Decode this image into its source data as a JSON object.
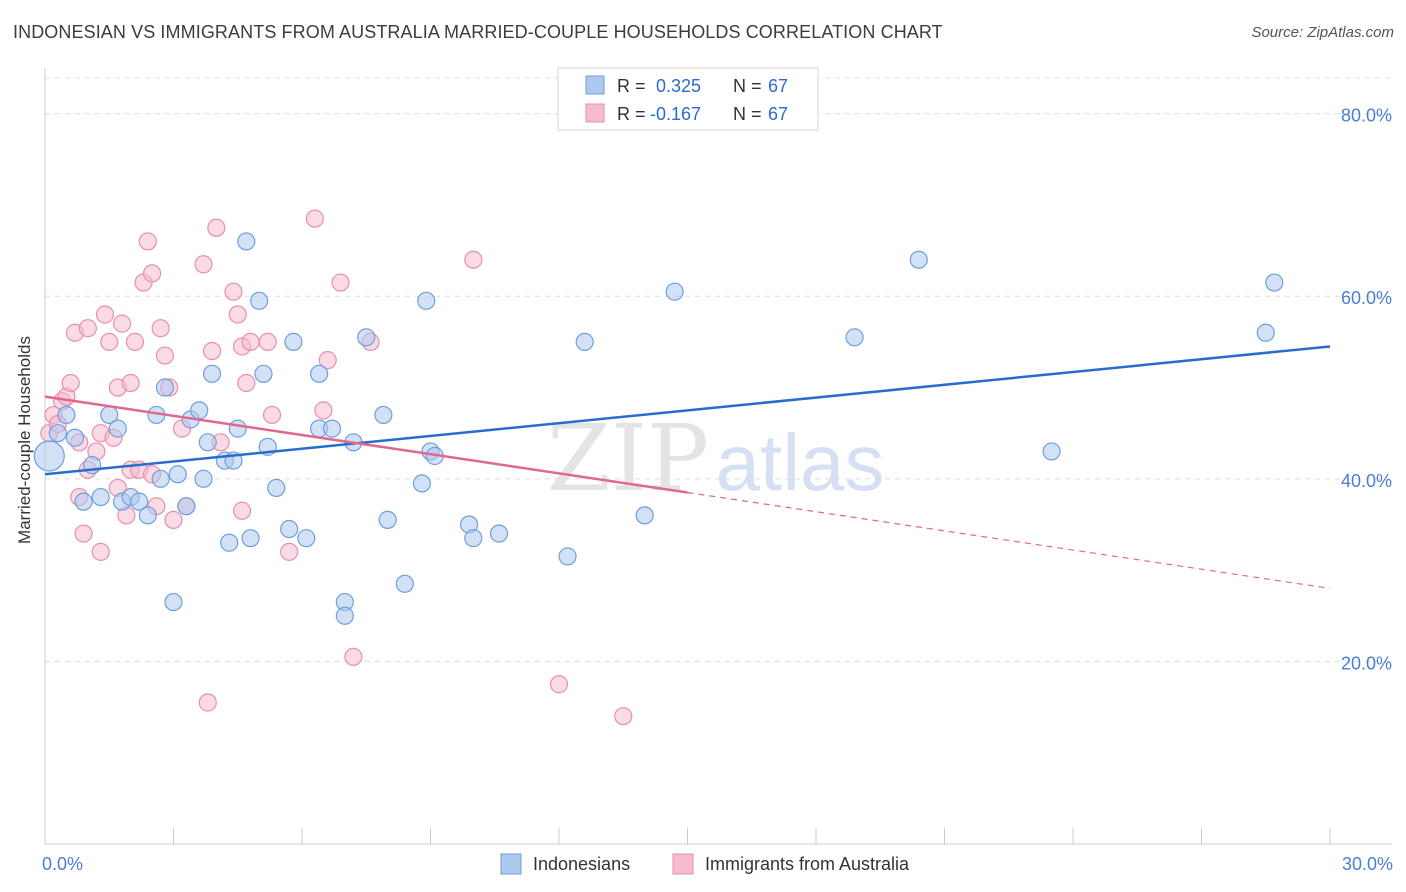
{
  "title": "INDONESIAN VS IMMIGRANTS FROM AUSTRALIA MARRIED-COUPLE HOUSEHOLDS CORRELATION CHART",
  "source": "Source: ZipAtlas.com",
  "watermark": {
    "zip": "ZIP",
    "atlas": "atlas"
  },
  "colors": {
    "blue_fill": "#adc8ee",
    "blue_stroke": "#6f9fdc",
    "blue_line": "#2a6ccc",
    "pink_fill": "#f6bccd",
    "pink_stroke": "#e890ac",
    "pink_line": "#e06890",
    "tick_text": "#4a7fd0",
    "grid": "#dcdcdc"
  },
  "legend": {
    "rows": [
      {
        "r_label": "R =",
        "r_value": "0.325",
        "n_label": "N =",
        "n_value": "67"
      },
      {
        "r_label": "R =",
        "r_value": "-0.167",
        "n_label": "N =",
        "n_value": "67"
      }
    ]
  },
  "bottom_legend": [
    "Indonesians",
    "Immigrants from Australia"
  ],
  "chart_data": {
    "type": "scatter",
    "title": "INDONESIAN VS IMMIGRANTS FROM AUSTRALIA MARRIED-COUPLE HOUSEHOLDS CORRELATION CHART",
    "xlabel": "",
    "ylabel": "Married-couple Households",
    "xlim": [
      0,
      30
    ],
    "ylim": [
      0,
      85
    ],
    "x_ticks": [
      "0.0%",
      "30.0%"
    ],
    "y_ticks": [
      {
        "value": 20,
        "label": "20.0%"
      },
      {
        "value": 40,
        "label": "40.0%"
      },
      {
        "value": 60,
        "label": "60.0%"
      },
      {
        "value": 80,
        "label": "80.0%"
      }
    ],
    "grid": true,
    "legend_position": "top-center",
    "series": [
      {
        "name": "Indonesians",
        "color": "#adc8ee",
        "points": [
          [
            0.1,
            42.5
          ],
          [
            0.3,
            45
          ],
          [
            0.5,
            47
          ],
          [
            0.7,
            44.5
          ],
          [
            0.9,
            37.5
          ],
          [
            1.1,
            41.5
          ],
          [
            1.3,
            38
          ],
          [
            1.5,
            47
          ],
          [
            1.7,
            45.5
          ],
          [
            1.8,
            37.5
          ],
          [
            2.0,
            38
          ],
          [
            2.2,
            37.5
          ],
          [
            2.4,
            36
          ],
          [
            2.6,
            47
          ],
          [
            2.7,
            40
          ],
          [
            2.8,
            50
          ],
          [
            3.0,
            26.5
          ],
          [
            3.1,
            40.5
          ],
          [
            3.3,
            37
          ],
          [
            3.4,
            46.5
          ],
          [
            3.6,
            47.5
          ],
          [
            3.7,
            40
          ],
          [
            3.8,
            44
          ],
          [
            3.9,
            51.5
          ],
          [
            4.2,
            42
          ],
          [
            4.3,
            33
          ],
          [
            4.4,
            42
          ],
          [
            4.5,
            45.5
          ],
          [
            4.7,
            66
          ],
          [
            4.8,
            33.5
          ],
          [
            5.0,
            59.5
          ],
          [
            5.1,
            51.5
          ],
          [
            5.2,
            43.5
          ],
          [
            5.4,
            39
          ],
          [
            5.7,
            34.5
          ],
          [
            5.8,
            55
          ],
          [
            6.1,
            33.5
          ],
          [
            6.4,
            51.5
          ],
          [
            6.4,
            45.5
          ],
          [
            6.7,
            45.5
          ],
          [
            7.0,
            26.5
          ],
          [
            7.0,
            25
          ],
          [
            7.2,
            44
          ],
          [
            7.5,
            55.5
          ],
          [
            7.9,
            47
          ],
          [
            8.0,
            35.5
          ],
          [
            8.4,
            28.5
          ],
          [
            8.8,
            39.5
          ],
          [
            8.9,
            59.5
          ],
          [
            9.0,
            43
          ],
          [
            9.1,
            42.5
          ],
          [
            9.9,
            35
          ],
          [
            10.0,
            33.5
          ],
          [
            10.6,
            34
          ],
          [
            12.2,
            31.5
          ],
          [
            12.6,
            55
          ],
          [
            14.0,
            36
          ],
          [
            14.7,
            60.5
          ],
          [
            18.9,
            55.5
          ],
          [
            20.4,
            64
          ],
          [
            23.5,
            43
          ],
          [
            28.5,
            56
          ],
          [
            28.7,
            61.5
          ]
        ],
        "trend": {
          "x": [
            0,
            30
          ],
          "y": [
            40.5,
            54.5
          ],
          "style": "solid"
        }
      },
      {
        "name": "Immigrants from Australia",
        "color": "#f6bccd",
        "points": [
          [
            0.1,
            45
          ],
          [
            0.2,
            47
          ],
          [
            0.3,
            46
          ],
          [
            0.4,
            48.5
          ],
          [
            0.5,
            49
          ],
          [
            0.6,
            50.5
          ],
          [
            0.7,
            56
          ],
          [
            0.8,
            44
          ],
          [
            0.8,
            38
          ],
          [
            0.9,
            34
          ],
          [
            1.0,
            41
          ],
          [
            1.0,
            56.5
          ],
          [
            1.2,
            43
          ],
          [
            1.3,
            45
          ],
          [
            1.3,
            32
          ],
          [
            1.4,
            58
          ],
          [
            1.5,
            55
          ],
          [
            1.6,
            44.5
          ],
          [
            1.7,
            39
          ],
          [
            1.7,
            50
          ],
          [
            1.8,
            57
          ],
          [
            1.9,
            36
          ],
          [
            2.0,
            50.5
          ],
          [
            2.0,
            41
          ],
          [
            2.1,
            55
          ],
          [
            2.2,
            41
          ],
          [
            2.3,
            61.5
          ],
          [
            2.4,
            66
          ],
          [
            2.5,
            40.5
          ],
          [
            2.5,
            62.5
          ],
          [
            2.6,
            37
          ],
          [
            2.7,
            56.5
          ],
          [
            2.8,
            53.5
          ],
          [
            2.9,
            50
          ],
          [
            3.0,
            35.5
          ],
          [
            3.2,
            45.5
          ],
          [
            3.3,
            37
          ],
          [
            3.7,
            63.5
          ],
          [
            3.8,
            15.5
          ],
          [
            3.9,
            54
          ],
          [
            4.0,
            67.5
          ],
          [
            4.1,
            44
          ],
          [
            4.4,
            60.5
          ],
          [
            4.5,
            58
          ],
          [
            4.6,
            36.5
          ],
          [
            4.6,
            54.5
          ],
          [
            4.7,
            50.5
          ],
          [
            4.8,
            55
          ],
          [
            5.2,
            55
          ],
          [
            5.3,
            47
          ],
          [
            5.7,
            32
          ],
          [
            6.3,
            68.5
          ],
          [
            6.5,
            47.5
          ],
          [
            6.6,
            53
          ],
          [
            6.9,
            61.5
          ],
          [
            7.2,
            20.5
          ],
          [
            7.6,
            55
          ],
          [
            10.0,
            64
          ],
          [
            12.0,
            17.5
          ],
          [
            13.5,
            14
          ]
        ],
        "trend": {
          "x": [
            0,
            15
          ],
          "y": [
            49,
            38.5
          ],
          "style": "solid",
          "extension": {
            "x": [
              15,
              30
            ],
            "y": [
              38.5,
              28
            ],
            "style": "dashed"
          }
        }
      }
    ]
  }
}
